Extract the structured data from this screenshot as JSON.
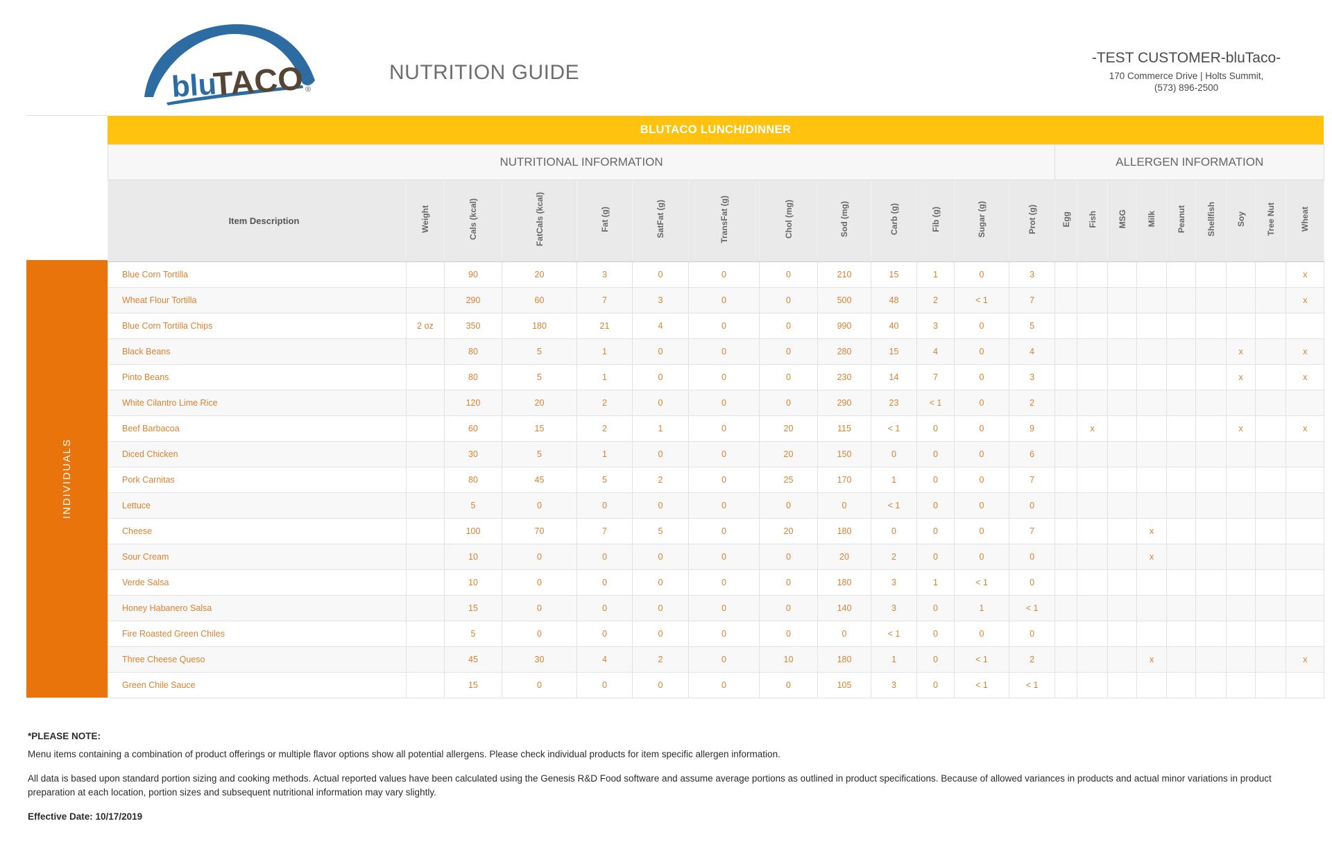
{
  "header": {
    "logo": {
      "blu": "blu",
      "taco": "TACO",
      "registered": "®"
    },
    "title": "NUTRITION GUIDE",
    "customer": {
      "name": "-TEST CUSTOMER-bluTaco-",
      "address": "170 Commerce Drive | Holts Summit,",
      "phone": "(573) 896-2500"
    }
  },
  "banner": {
    "title": "BLUTACO LUNCH/DINNER"
  },
  "sections": {
    "nutrition": "NUTRITIONAL INFORMATION",
    "allergen": "ALLERGEN INFORMATION"
  },
  "sidebar": {
    "label": "INDIVIDUALS"
  },
  "table": {
    "item_header": "Item Description",
    "nutrition_columns": [
      "Weight",
      "Cals (kcal)",
      "FatCals (kcal)",
      "Fat (g)",
      "SatFat (g)",
      "TransFat (g)",
      "Chol (mg)",
      "Sod (mg)",
      "Carb (g)",
      "Fib (g)",
      "Sugar (g)",
      "Prot (g)"
    ],
    "allergen_columns": [
      "Egg",
      "Fish",
      "MSG",
      "Milk",
      "Peanut",
      "Shellfish",
      "Soy",
      "Tree Nut",
      "Wheat"
    ],
    "rows": [
      {
        "item": "Blue Corn Tortilla",
        "values": [
          "",
          "90",
          "20",
          "3",
          "0",
          "0",
          "0",
          "210",
          "15",
          "1",
          "0",
          "3"
        ],
        "allergens": [
          "",
          "",
          "",
          "",
          "",
          "",
          "",
          "",
          "x"
        ]
      },
      {
        "item": "Wheat Flour Tortilla",
        "values": [
          "",
          "290",
          "60",
          "7",
          "3",
          "0",
          "0",
          "500",
          "48",
          "2",
          "< 1",
          "7"
        ],
        "allergens": [
          "",
          "",
          "",
          "",
          "",
          "",
          "",
          "",
          "x"
        ]
      },
      {
        "item": "Blue Corn Tortilla Chips",
        "values": [
          "2 oz",
          "350",
          "180",
          "21",
          "4",
          "0",
          "0",
          "990",
          "40",
          "3",
          "0",
          "5"
        ],
        "allergens": [
          "",
          "",
          "",
          "",
          "",
          "",
          "",
          "",
          ""
        ]
      },
      {
        "item": "Black Beans",
        "values": [
          "",
          "80",
          "5",
          "1",
          "0",
          "0",
          "0",
          "280",
          "15",
          "4",
          "0",
          "4"
        ],
        "allergens": [
          "",
          "",
          "",
          "",
          "",
          "",
          "x",
          "",
          "x"
        ]
      },
      {
        "item": "Pinto Beans",
        "values": [
          "",
          "80",
          "5",
          "1",
          "0",
          "0",
          "0",
          "230",
          "14",
          "7",
          "0",
          "3"
        ],
        "allergens": [
          "",
          "",
          "",
          "",
          "",
          "",
          "x",
          "",
          "x"
        ]
      },
      {
        "item": "White Cilantro Lime Rice",
        "values": [
          "",
          "120",
          "20",
          "2",
          "0",
          "0",
          "0",
          "290",
          "23",
          "< 1",
          "0",
          "2"
        ],
        "allergens": [
          "",
          "",
          "",
          "",
          "",
          "",
          "",
          "",
          ""
        ]
      },
      {
        "item": "Beef Barbacoa",
        "values": [
          "",
          "60",
          "15",
          "2",
          "1",
          "0",
          "20",
          "115",
          "< 1",
          "0",
          "0",
          "9"
        ],
        "allergens": [
          "",
          "x",
          "",
          "",
          "",
          "",
          "x",
          "",
          "x"
        ]
      },
      {
        "item": "Diced Chicken",
        "values": [
          "",
          "30",
          "5",
          "1",
          "0",
          "0",
          "20",
          "150",
          "0",
          "0",
          "0",
          "6"
        ],
        "allergens": [
          "",
          "",
          "",
          "",
          "",
          "",
          "",
          "",
          ""
        ]
      },
      {
        "item": "Pork Carnitas",
        "values": [
          "",
          "80",
          "45",
          "5",
          "2",
          "0",
          "25",
          "170",
          "1",
          "0",
          "0",
          "7"
        ],
        "allergens": [
          "",
          "",
          "",
          "",
          "",
          "",
          "",
          "",
          ""
        ]
      },
      {
        "item": "Lettuce",
        "values": [
          "",
          "5",
          "0",
          "0",
          "0",
          "0",
          "0",
          "0",
          "< 1",
          "0",
          "0",
          "0"
        ],
        "allergens": [
          "",
          "",
          "",
          "",
          "",
          "",
          "",
          "",
          ""
        ]
      },
      {
        "item": "Cheese",
        "values": [
          "",
          "100",
          "70",
          "7",
          "5",
          "0",
          "20",
          "180",
          "0",
          "0",
          "0",
          "7"
        ],
        "allergens": [
          "",
          "",
          "",
          "x",
          "",
          "",
          "",
          "",
          ""
        ]
      },
      {
        "item": "Sour Cream",
        "values": [
          "",
          "10",
          "0",
          "0",
          "0",
          "0",
          "0",
          "20",
          "2",
          "0",
          "0",
          "0"
        ],
        "allergens": [
          "",
          "",
          "",
          "x",
          "",
          "",
          "",
          "",
          ""
        ]
      },
      {
        "item": "Verde Salsa",
        "values": [
          "",
          "10",
          "0",
          "0",
          "0",
          "0",
          "0",
          "180",
          "3",
          "1",
          "< 1",
          "0"
        ],
        "allergens": [
          "",
          "",
          "",
          "",
          "",
          "",
          "",
          "",
          ""
        ]
      },
      {
        "item": "Honey Habanero Salsa",
        "values": [
          "",
          "15",
          "0",
          "0",
          "0",
          "0",
          "0",
          "140",
          "3",
          "0",
          "1",
          "< 1"
        ],
        "allergens": [
          "",
          "",
          "",
          "",
          "",
          "",
          "",
          "",
          ""
        ]
      },
      {
        "item": "Fire Roasted Green Chiles",
        "values": [
          "",
          "5",
          "0",
          "0",
          "0",
          "0",
          "0",
          "0",
          "< 1",
          "0",
          "0",
          "0"
        ],
        "allergens": [
          "",
          "",
          "",
          "",
          "",
          "",
          "",
          "",
          ""
        ]
      },
      {
        "item": "Three Cheese Queso",
        "values": [
          "",
          "45",
          "30",
          "4",
          "2",
          "0",
          "10",
          "180",
          "1",
          "0",
          "< 1",
          "2"
        ],
        "allergens": [
          "",
          "",
          "",
          "x",
          "",
          "",
          "",
          "",
          "x"
        ]
      },
      {
        "item": "Green Chile Sauce",
        "values": [
          "",
          "15",
          "0",
          "0",
          "0",
          "0",
          "0",
          "105",
          "3",
          "0",
          "< 1",
          "< 1"
        ],
        "allergens": [
          "",
          "",
          "",
          "",
          "",
          "",
          "",
          "",
          ""
        ]
      }
    ]
  },
  "footer": {
    "note_title": "*PLEASE NOTE:",
    "note1": "Menu items containing a combination of product offerings or multiple flavor options show all potential allergens. Please check individual products for item specific allergen information.",
    "note2": "All data is based upon standard portion sizing and cooking methods. Actual reported values have been calculated using the Genesis R&D Food software and assume average portions as outlined in product specifications. Because of allowed variances in products and actual minor variations in product preparation at each location, portion sizes and subsequent nutritional information may vary slightly.",
    "effective_date": "Effective Date: 10/17/2019"
  },
  "colors": {
    "banner_yellow": "#FFC20E",
    "sidebar_orange": "#E8740B",
    "data_orange": "#D9822F",
    "logo_blue": "#2D6BA3",
    "logo_brown": "#564434"
  }
}
